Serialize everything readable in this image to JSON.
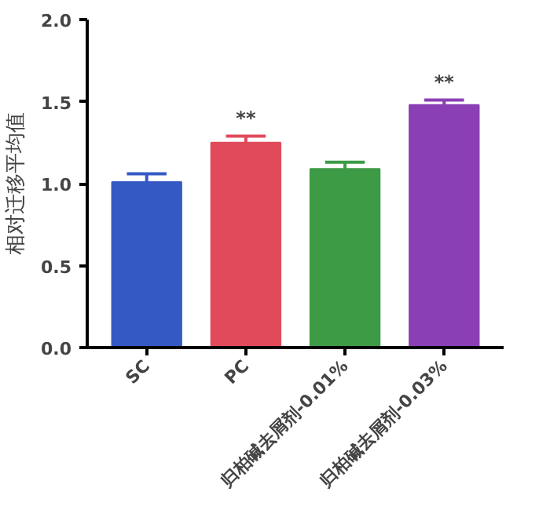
{
  "chart_data": {
    "type": "bar",
    "ylabel": "相对迁移平均值",
    "categories": [
      "SC",
      "PC",
      "归柏碱去屑剂-0.01%",
      "归柏碱去屑剂-0.03%"
    ],
    "values": [
      1.01,
      1.25,
      1.09,
      1.48
    ],
    "colors": [
      "#3559c4",
      "#e04a5a",
      "#3d9a45",
      "#8b3fb5"
    ],
    "errors": [
      [
        1.01,
        1.06
      ],
      [
        1.25,
        1.29
      ],
      [
        1.09,
        1.13
      ],
      [
        1.48,
        1.51
      ]
    ],
    "ylim": [
      0,
      2.0
    ],
    "yticks": [
      {
        "value": 0,
        "label": "0.0"
      },
      0.5,
      {
        "value": 1,
        "label": "1.0"
      },
      1.5,
      {
        "value": 2,
        "label": "2.0"
      }
    ],
    "annotations": [
      {
        "text": "**",
        "x": "PC",
        "y": 1.29
      },
      {
        "text": "**",
        "x": "归柏碱去屑剂-0.03%",
        "y": 1.51
      }
    ],
    "grid": false
  }
}
